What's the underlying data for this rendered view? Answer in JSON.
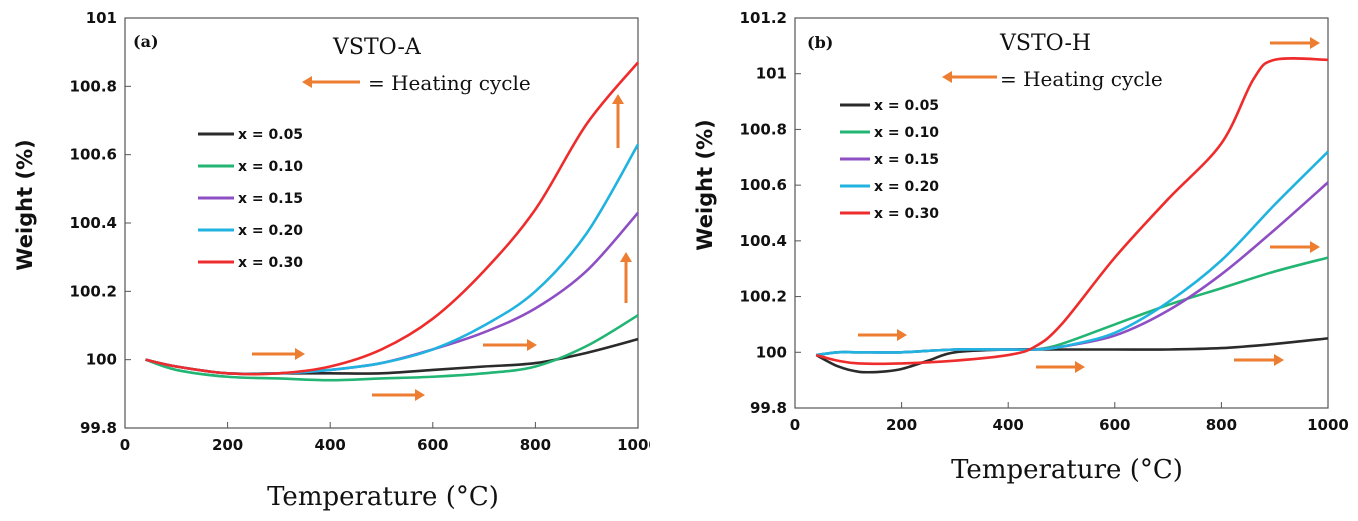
{
  "chart_data": [
    {
      "type": "line",
      "panel_label": "(a)",
      "title": "VSTO-A",
      "legend_note": "= Heating cycle",
      "xlabel": "Temperature (°C)",
      "ylabel": "Weight (%)",
      "xlim": [
        0,
        1000
      ],
      "ylim": [
        99.8,
        101
      ],
      "xticks": [
        "0",
        "200",
        "400",
        "600",
        "800",
        "1000"
      ],
      "yticks": [
        "99.8",
        "100",
        "100.2",
        "100.4",
        "100.6",
        "100.8",
        "101"
      ],
      "legend_position": "left",
      "series": [
        {
          "name": "x = 0.05",
          "color": "#2b2b2b",
          "x": [
            40,
            100,
            200,
            300,
            400,
            500,
            600,
            700,
            800,
            900,
            1000
          ],
          "y": [
            100.0,
            99.98,
            99.96,
            99.96,
            99.96,
            99.96,
            99.97,
            99.98,
            99.99,
            100.02,
            100.06
          ]
        },
        {
          "name": "x = 0.10",
          "color": "#22b573",
          "x": [
            40,
            100,
            200,
            300,
            400,
            500,
            600,
            700,
            800,
            900,
            1000
          ],
          "y": [
            100.0,
            99.97,
            99.95,
            99.945,
            99.94,
            99.945,
            99.95,
            99.96,
            99.98,
            100.04,
            100.13
          ]
        },
        {
          "name": "x = 0.15",
          "color": "#8e4fc4",
          "x": [
            40,
            100,
            200,
            300,
            400,
            500,
            600,
            700,
            800,
            900,
            1000
          ],
          "y": [
            100.0,
            99.98,
            99.96,
            99.96,
            99.97,
            99.99,
            100.03,
            100.08,
            100.15,
            100.26,
            100.43
          ]
        },
        {
          "name": "x = 0.20",
          "color": "#21b3e0",
          "x": [
            40,
            100,
            200,
            300,
            400,
            500,
            600,
            700,
            800,
            900,
            1000
          ],
          "y": [
            100.0,
            99.98,
            99.96,
            99.96,
            99.97,
            99.99,
            100.03,
            100.1,
            100.2,
            100.37,
            100.63
          ]
        },
        {
          "name": "x = 0.30",
          "color": "#ee2c2c",
          "x": [
            40,
            100,
            200,
            300,
            400,
            500,
            600,
            700,
            800,
            900,
            1000
          ],
          "y": [
            100.0,
            99.98,
            99.96,
            99.96,
            99.98,
            100.03,
            100.12,
            100.26,
            100.44,
            100.69,
            100.87
          ]
        }
      ]
    },
    {
      "type": "line",
      "panel_label": "(b)",
      "title": "VSTO-H",
      "legend_note": "= Heating cycle",
      "xlabel": "Temperature (°C)",
      "ylabel": "Weight (%)",
      "xlim": [
        0,
        1000
      ],
      "ylim": [
        99.8,
        101.2
      ],
      "xticks": [
        "0",
        "200",
        "400",
        "600",
        "800",
        "1000"
      ],
      "yticks": [
        "99.8",
        "100",
        "100.2",
        "100.4",
        "100.6",
        "100.8",
        "101",
        "101.2"
      ],
      "legend_position": "left",
      "series": [
        {
          "name": "x = 0.05",
          "color": "#2b2b2b",
          "x": [
            40,
            80,
            120,
            160,
            200,
            250,
            300,
            400,
            500,
            600,
            700,
            800,
            900,
            1000
          ],
          "y": [
            99.99,
            99.95,
            99.93,
            99.93,
            99.94,
            99.97,
            100.0,
            100.01,
            100.01,
            100.01,
            100.01,
            100.015,
            100.03,
            100.05
          ]
        },
        {
          "name": "x = 0.10",
          "color": "#22b573",
          "x": [
            40,
            80,
            120,
            200,
            300,
            400,
            450,
            500,
            600,
            700,
            800,
            900,
            1000
          ],
          "y": [
            99.99,
            100.0,
            100.0,
            100.0,
            100.01,
            100.01,
            100.01,
            100.03,
            100.1,
            100.17,
            100.23,
            100.29,
            100.34
          ]
        },
        {
          "name": "x = 0.15",
          "color": "#8e4fc4",
          "x": [
            40,
            80,
            120,
            200,
            300,
            400,
            450,
            500,
            600,
            700,
            800,
            900,
            1000
          ],
          "y": [
            99.99,
            100.0,
            100.0,
            100.0,
            100.01,
            100.01,
            100.01,
            100.02,
            100.06,
            100.15,
            100.28,
            100.44,
            100.61
          ]
        },
        {
          "name": "x = 0.20",
          "color": "#21b3e0",
          "x": [
            40,
            80,
            120,
            200,
            300,
            400,
            450,
            500,
            600,
            700,
            800,
            900,
            1000
          ],
          "y": [
            99.99,
            100.0,
            100.0,
            100.0,
            100.01,
            100.01,
            100.01,
            100.02,
            100.07,
            100.18,
            100.33,
            100.53,
            100.72
          ]
        },
        {
          "name": "x = 0.30",
          "color": "#ee2c2c",
          "x": [
            40,
            80,
            120,
            200,
            300,
            400,
            450,
            500,
            600,
            700,
            800,
            860,
            900,
            1000
          ],
          "y": [
            99.99,
            99.97,
            99.96,
            99.96,
            99.97,
            99.99,
            100.02,
            100.1,
            100.34,
            100.55,
            100.75,
            100.98,
            101.05,
            101.05
          ]
        }
      ]
    }
  ]
}
